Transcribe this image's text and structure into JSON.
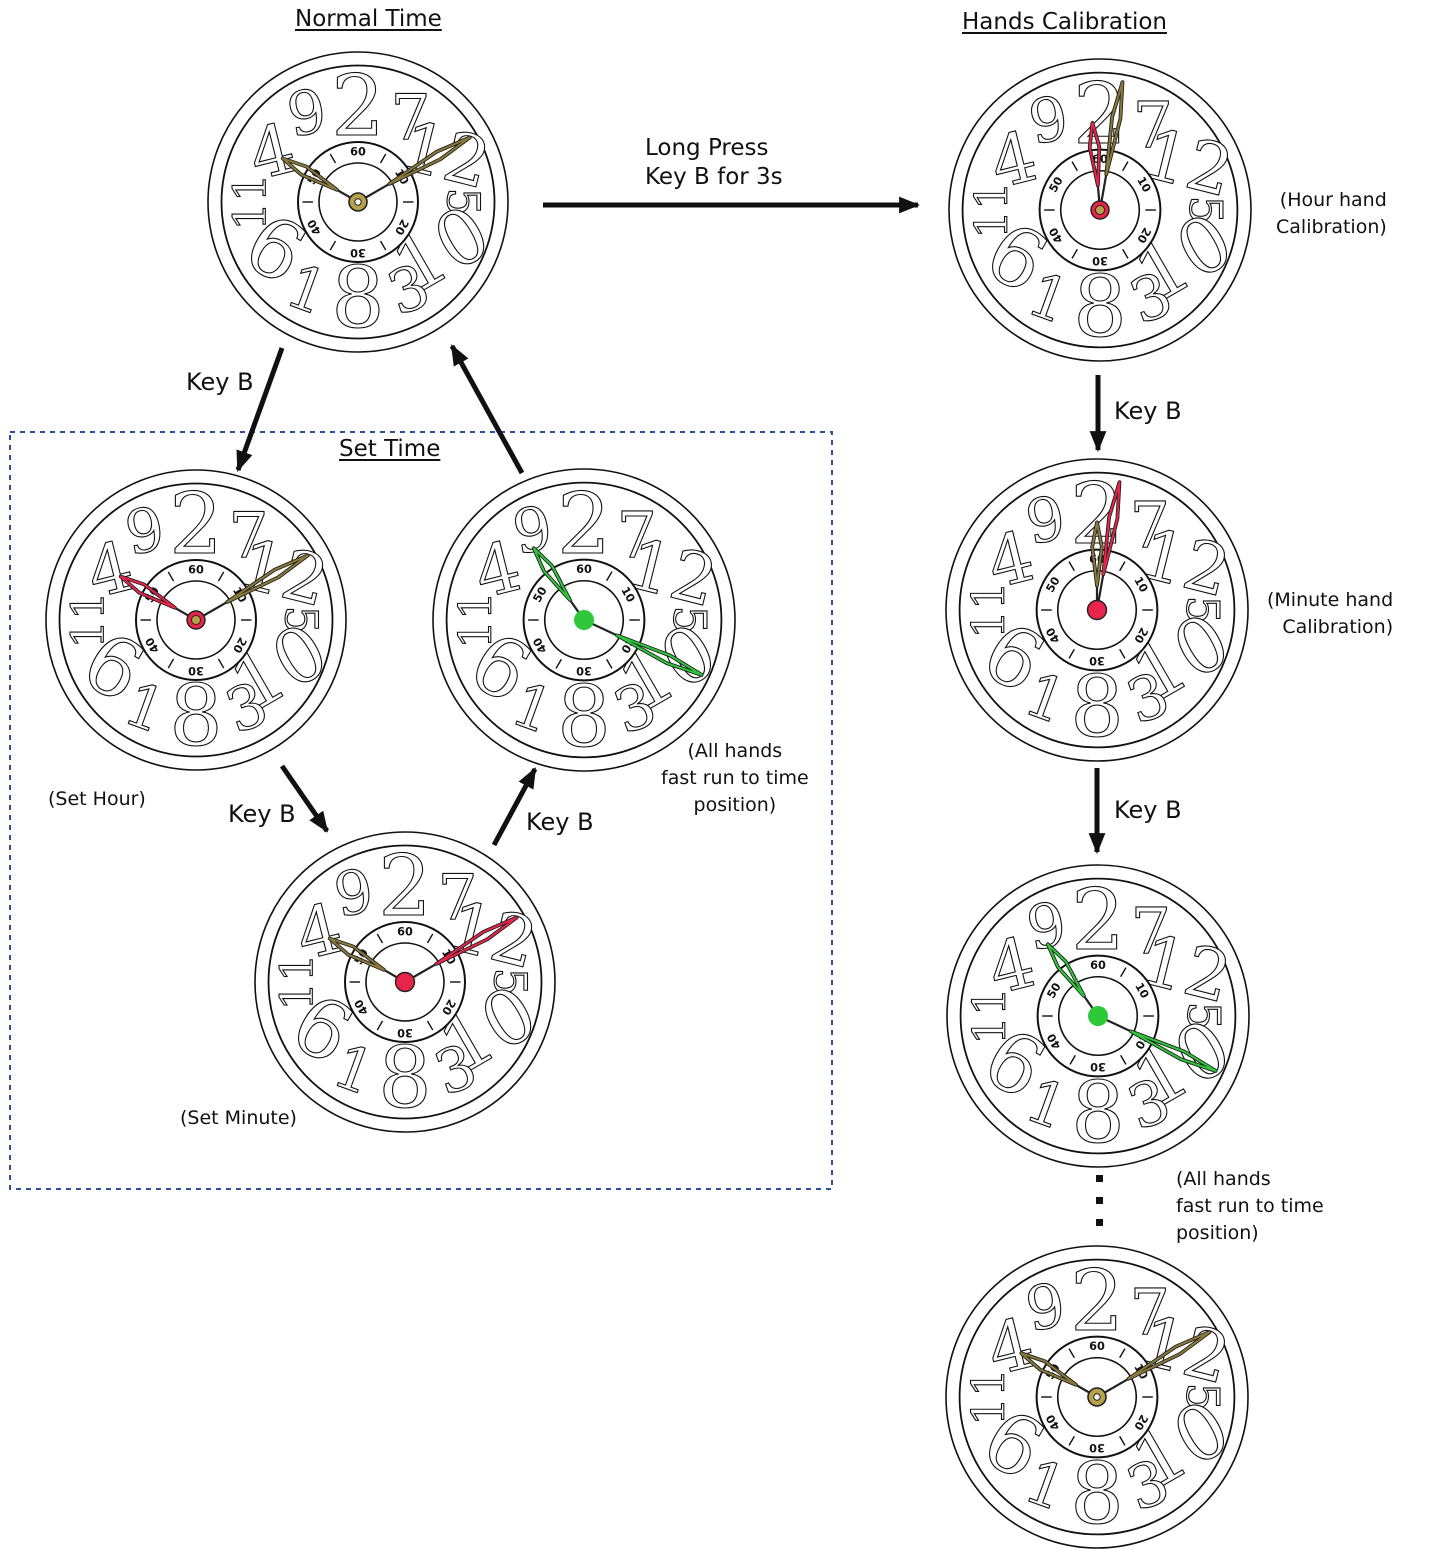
{
  "headings": {
    "normal_time": "Normal Time",
    "hands_calibration": "Hands  Calibration",
    "set_time": "Set Time"
  },
  "arrow_labels": {
    "long_press": "Long Press\nKey B for 3s",
    "normal_to_set_hour": "Key B",
    "set_hour_to_set_minute": "Key B",
    "set_minute_to_fast_run": "Key B",
    "hour_cal_to_minute_cal": "Key B",
    "minute_cal_to_fast_run": "Key B"
  },
  "captions": {
    "set_hour": "(Set Hour)",
    "set_minute": "(Set Minute)",
    "set_fast_run": "(All hands\nfast run to time\nposition)",
    "hour_cal": "(Hour hand\nCalibration)",
    "minute_cal": "(Minute hand\nCalibration)",
    "cal_fast_run": "(All hands\nfast run to time\nposition)"
  },
  "dial": {
    "numerals": [
      "2",
      "7",
      "12",
      "5",
      "10",
      "3",
      "8",
      "1",
      "6",
      "11",
      "4",
      "9"
    ],
    "subdial_labels": [
      "60",
      "10",
      "20",
      "30",
      "40",
      "50"
    ]
  },
  "colors": {
    "ink": "#111111",
    "normal_hand": "#8a7a3a",
    "hub": "#b5a24a",
    "active_hand": "#e8244a",
    "fast_run_hand": "#2ec83a",
    "group_border": "#2f4fa0"
  },
  "clocks": [
    {
      "id": "normal-time",
      "hour_hand": "normal",
      "minute_hand": "normal",
      "hub": "normal",
      "hour_dir": 300,
      "minute_dir": 60
    },
    {
      "id": "hour-calibration",
      "hour_hand": "active",
      "minute_hand": "normal",
      "hub": "active-ring",
      "hour_dir": 355,
      "minute_dir": 10
    },
    {
      "id": "set-hour",
      "hour_hand": "active",
      "minute_hand": "normal",
      "hub": "active-ring",
      "hour_dir": 300,
      "minute_dir": 60
    },
    {
      "id": "set-fast-run",
      "hour_hand": "fast",
      "minute_hand": "fast",
      "hub": "fast",
      "hour_dir": 325,
      "minute_dir": 115
    },
    {
      "id": "minute-calibration",
      "hour_hand": "normal",
      "minute_hand": "active",
      "hub": "active",
      "hour_dir": 0,
      "minute_dir": 10
    },
    {
      "id": "set-minute",
      "hour_hand": "normal",
      "minute_hand": "active",
      "hub": "active",
      "hour_dir": 300,
      "minute_dir": 60
    },
    {
      "id": "cal-fast-run",
      "hour_hand": "fast",
      "minute_hand": "fast",
      "hub": "fast",
      "hour_dir": 325,
      "minute_dir": 115
    },
    {
      "id": "final-normal",
      "hour_hand": "normal",
      "minute_hand": "normal",
      "hub": "normal",
      "hour_dir": 300,
      "minute_dir": 60
    }
  ]
}
